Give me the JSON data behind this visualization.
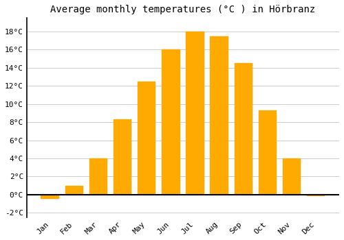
{
  "title": "Average monthly temperatures (°C ) in Hörbranz",
  "months": [
    "Jan",
    "Feb",
    "Mar",
    "Apr",
    "May",
    "Jun",
    "Jul",
    "Aug",
    "Sep",
    "Oct",
    "Nov",
    "Dec"
  ],
  "values": [
    -0.5,
    1.0,
    4.0,
    8.3,
    12.5,
    16.0,
    18.0,
    17.5,
    14.5,
    9.3,
    4.0,
    -0.2
  ],
  "bar_color": "#FFAA00",
  "bar_edge_color": "#FFAA00",
  "ylim": [
    -2.5,
    19.5
  ],
  "yticks": [
    -2,
    0,
    2,
    4,
    6,
    8,
    10,
    12,
    14,
    16,
    18
  ],
  "ytick_labels": [
    "-2°C",
    "0°C",
    "2°C",
    "4°C",
    "6°C",
    "8°C",
    "10°C",
    "12°C",
    "14°C",
    "16°C",
    "18°C"
  ],
  "grid_color": "#cccccc",
  "bg_color": "#ffffff",
  "title_fontsize": 10,
  "tick_fontsize": 8,
  "zero_line_color": "#000000",
  "bar_width": 0.75,
  "left_spine_color": "#000000"
}
